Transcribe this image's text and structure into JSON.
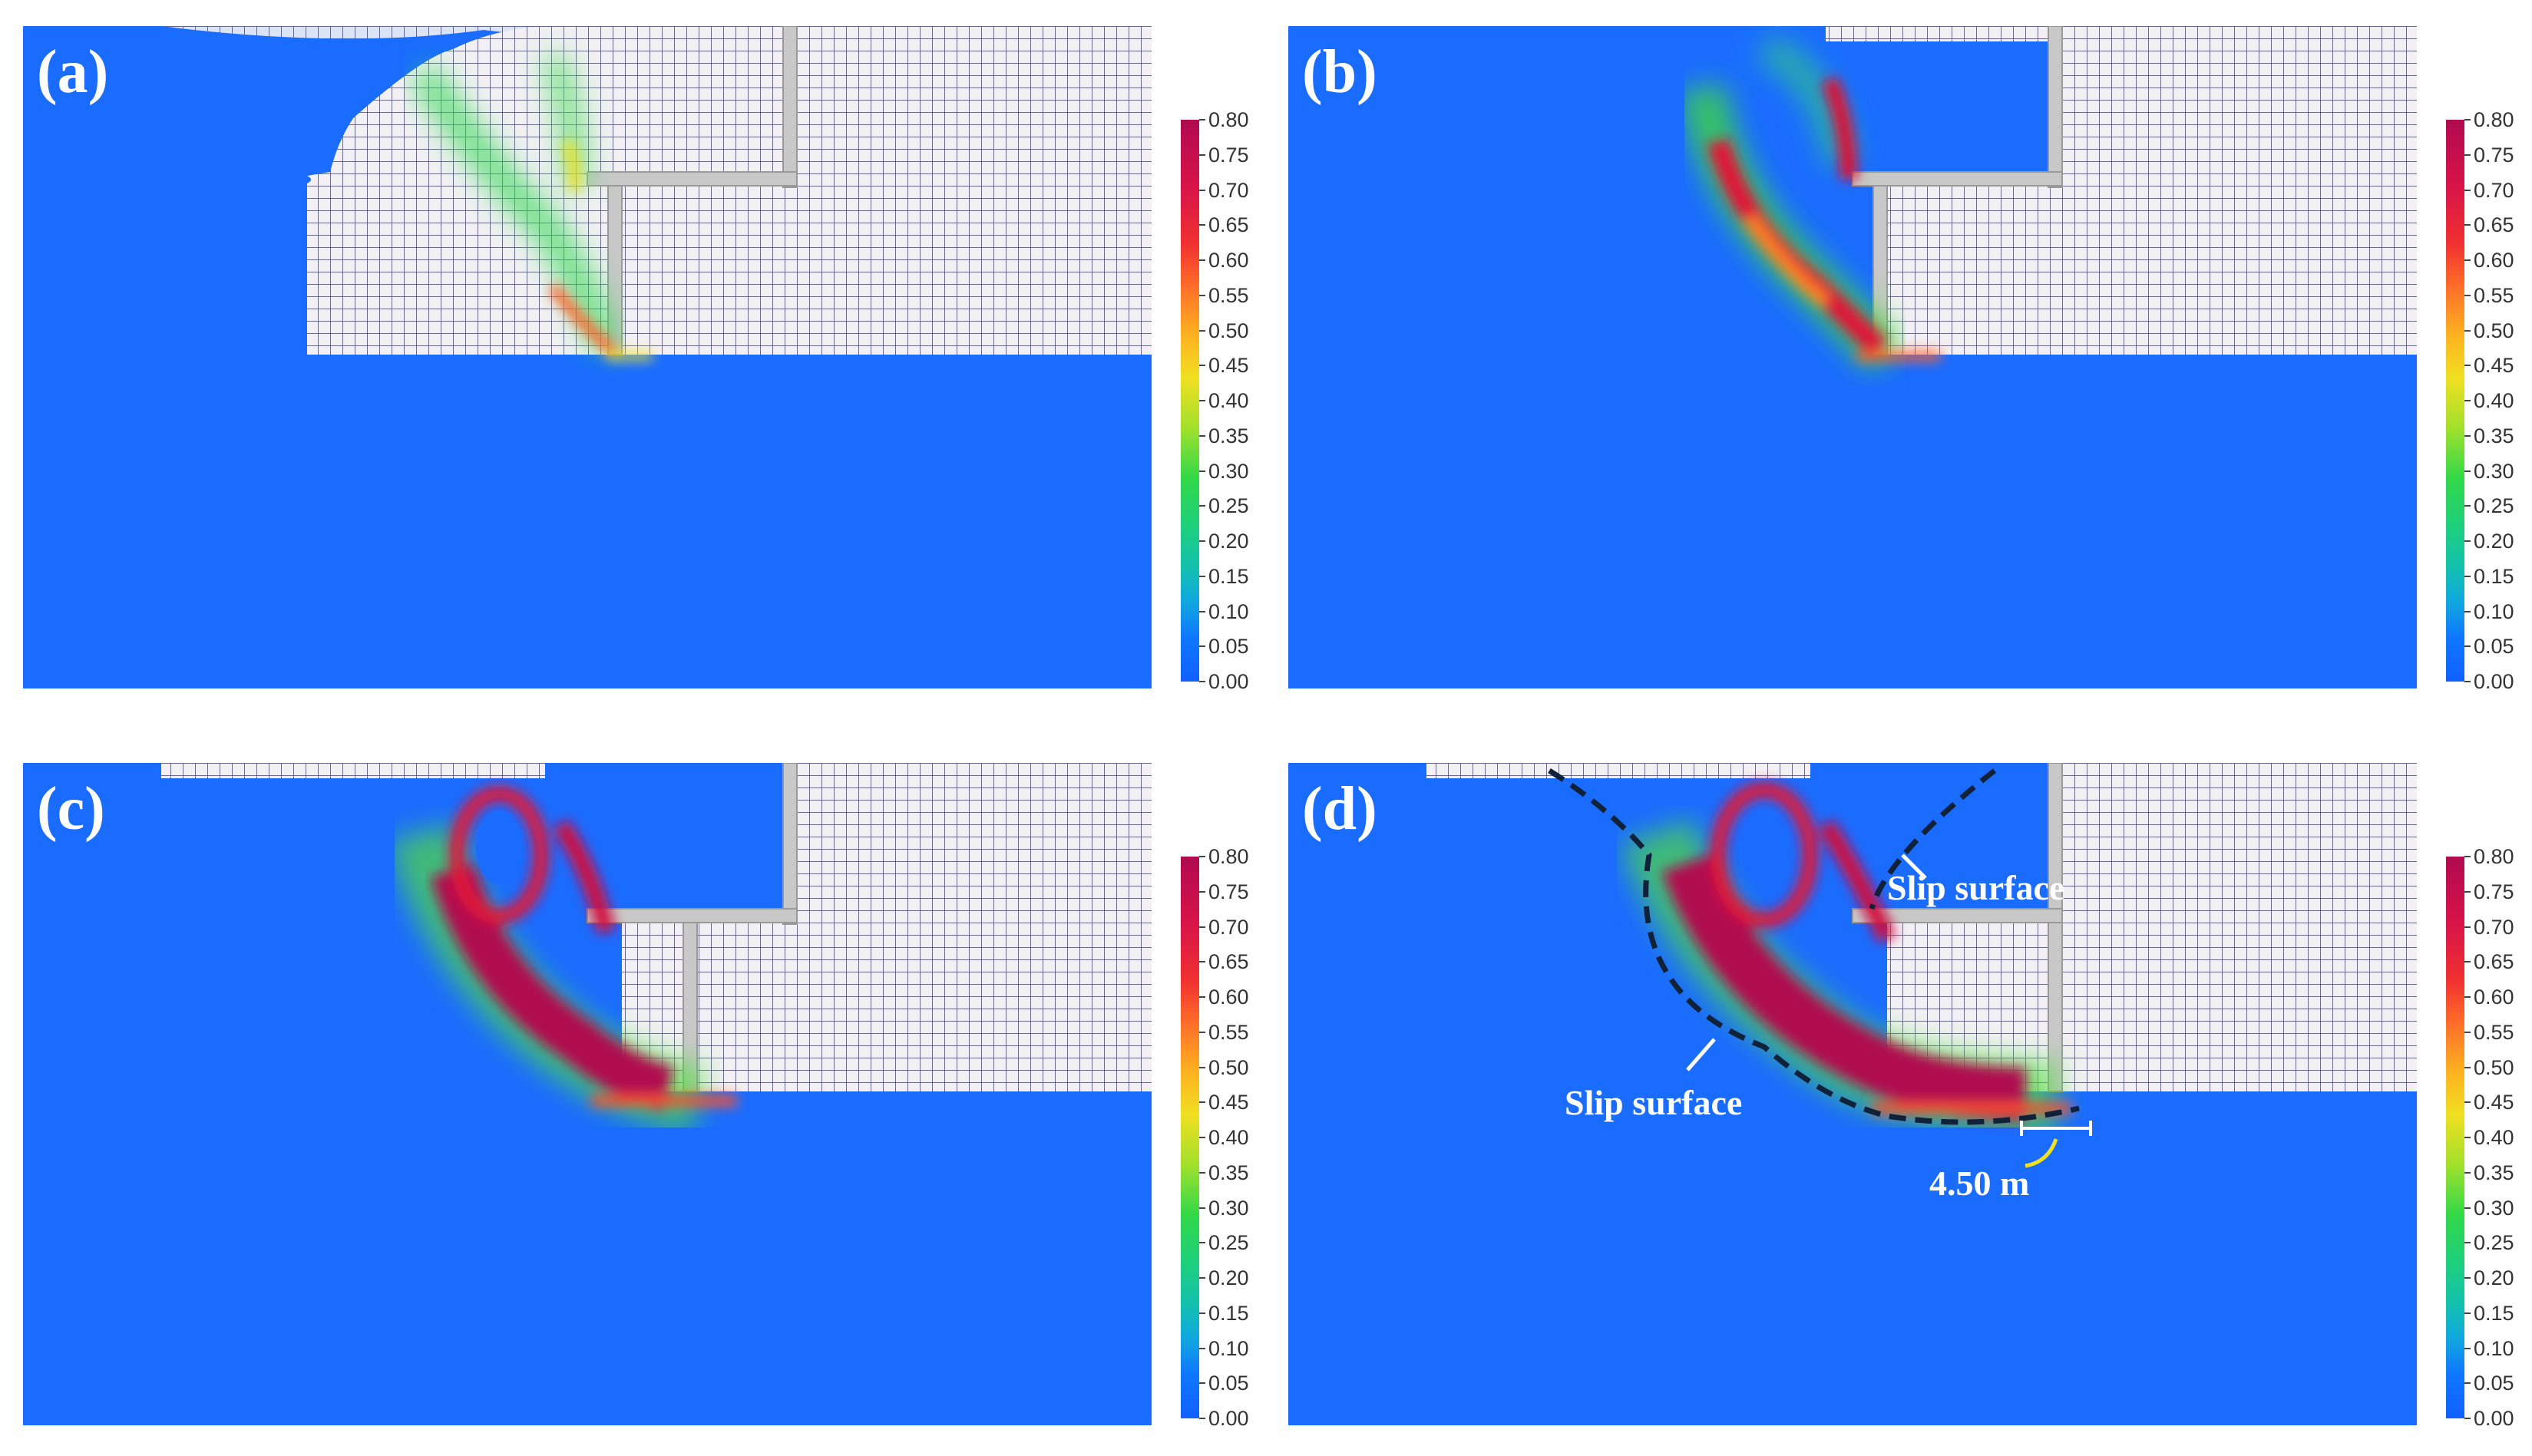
{
  "panels": [
    {
      "label": "(a)"
    },
    {
      "label": "(b)"
    },
    {
      "label": "(c)"
    },
    {
      "label": "(d)"
    }
  ],
  "colorbar": {
    "ticks": [
      "0.00",
      "0.05",
      "0.10",
      "0.15",
      "0.20",
      "0.25",
      "0.30",
      "0.35",
      "0.40",
      "0.45",
      "0.50",
      "0.55",
      "0.60",
      "0.65",
      "0.70",
      "0.75",
      "0.80"
    ],
    "range": [
      0,
      0.8
    ],
    "colors": {
      "low": "#1060ff",
      "mid": "#f0e020",
      "high": "#b00a50"
    }
  },
  "annotations": {
    "slip_surface_upper": "Slip surface",
    "slip_surface_lower": "Slip surface",
    "distance": "4.50 m"
  },
  "colors": {
    "background_field": "#1a6cff",
    "mesh": "#c8c8d8",
    "wall": "#c8c8c8",
    "slip_line": "#10213a"
  }
}
